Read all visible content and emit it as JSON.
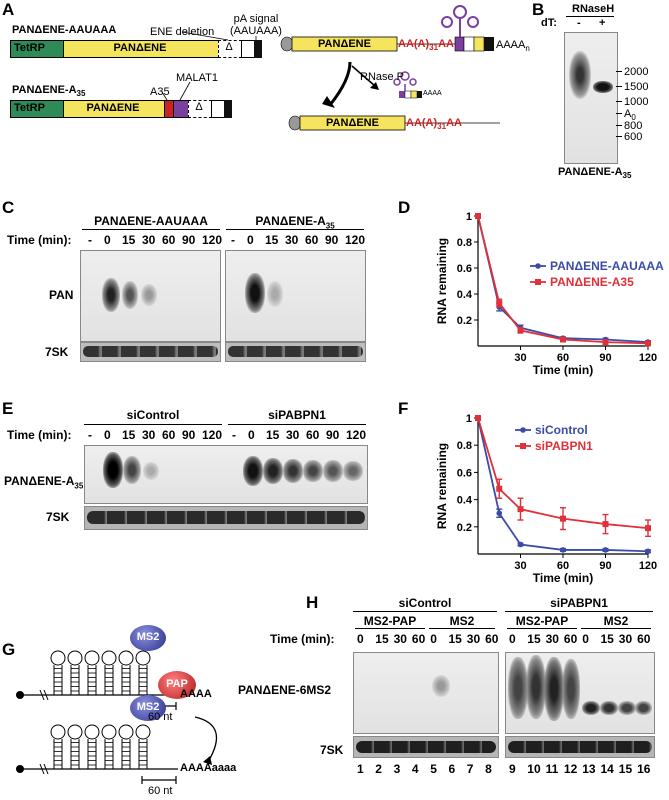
{
  "panel_labels": {
    "A": "A",
    "B": "B",
    "C": "C",
    "D": "D",
    "E": "E",
    "F": "F",
    "G": "G",
    "H": "H"
  },
  "panel_a": {
    "construct1_title": "PANΔENE-AAUAAA",
    "construct2_title": "PANΔENE-A35",
    "tetrp": "TetRP",
    "pan_ene": "PANΔENE",
    "delta": "Δ",
    "ene_deletion": "ENE deletion",
    "pa_signal": "pA signal",
    "pa_signal_seq": "(AAUAAA)",
    "a35": "A35",
    "malat1": "MALAT1",
    "rnase_p": "RNase P",
    "poly_a_label": "AA(A)31AA",
    "aaaan": "AAAAn",
    "aaaa_small": "AAAA",
    "colors": {
      "tetrp": "#2e8b57",
      "pan": "#f5e45e",
      "red": "#cc2222",
      "purple": "#7b3fa0"
    }
  },
  "panel_b": {
    "header": "RNaseH",
    "dt_label": "dT:",
    "lane_minus": "-",
    "lane_plus": "+",
    "markers": [
      "2000",
      "1500",
      "1000",
      "A0",
      "800",
      "600"
    ],
    "caption": "PANΔENE-A35"
  },
  "panel_c": {
    "group1": "PANΔENE-AAUAAA",
    "group2": "PANΔENE-A35",
    "time_label": "Time (min):",
    "times": [
      "-",
      "0",
      "15",
      "30",
      "60",
      "90",
      "120"
    ],
    "row1": "PAN",
    "row2": "7SK"
  },
  "panel_e": {
    "group1": "siControl",
    "group2": "siPABPN1",
    "time_label": "Time (min):",
    "times": [
      "-",
      "0",
      "15",
      "30",
      "60",
      "90",
      "120"
    ],
    "row1": "PANΔENE-A35",
    "row2": "7SK"
  },
  "panel_g": {
    "ms2": "MS2",
    "pap": "PAP",
    "aaaa": "AAAA",
    "aaaaaaaa": "AAAAaaaa",
    "nt60": "60 nt"
  },
  "panel_h": {
    "group1": "siControl",
    "group2": "siPABPN1",
    "sub1": "MS2-PAP",
    "sub2": "MS2",
    "sub3": "MS2-PAP",
    "sub4": "MS2",
    "time_label": "Time (min):",
    "times": [
      "0",
      "15",
      "30",
      "60"
    ],
    "row1": "PANΔENE-6MS2",
    "row2": "7SK",
    "lanes": [
      "1",
      "2",
      "3",
      "4",
      "5",
      "6",
      "7",
      "8",
      "9",
      "10",
      "11",
      "12",
      "13",
      "14",
      "15",
      "16"
    ]
  },
  "chart_data": [
    {
      "panel": "D",
      "type": "line",
      "xlabel": "Time (min)",
      "ylabel": "RNA remaining",
      "xlim": [
        0,
        120
      ],
      "ylim": [
        0,
        1
      ],
      "xticks": [
        "30",
        "60",
        "90",
        "120"
      ],
      "yticks": [
        "0.2",
        "0.4",
        "0.6",
        "0.8",
        "1"
      ],
      "legend_placement": "right",
      "x": [
        0,
        15,
        30,
        60,
        90,
        120
      ],
      "series": [
        {
          "name": "PANΔENE-AAUAAA",
          "color": "#3b4ba8",
          "values": [
            1.0,
            0.3,
            0.14,
            0.06,
            0.05,
            0.03
          ],
          "errors": [
            0,
            0.03,
            0.02,
            0.01,
            0.01,
            0.01
          ]
        },
        {
          "name": "PANΔENE-A35",
          "color": "#e0303a",
          "values": [
            1.0,
            0.33,
            0.12,
            0.05,
            0.03,
            0.02
          ],
          "errors": [
            0,
            0.03,
            0.02,
            0.01,
            0.01,
            0.01
          ]
        }
      ]
    },
    {
      "panel": "F",
      "type": "line",
      "xlabel": "Time (min)",
      "ylabel": "RNA remaining",
      "xlim": [
        0,
        120
      ],
      "ylim": [
        0,
        1
      ],
      "xticks": [
        "30",
        "60",
        "90",
        "120"
      ],
      "yticks": [
        "0.2",
        "0.4",
        "0.6",
        "0.8",
        "1"
      ],
      "legend_placement": "top-right",
      "x": [
        0,
        15,
        30,
        60,
        90,
        120
      ],
      "series": [
        {
          "name": "siControl",
          "color": "#3b4ba8",
          "values": [
            1.0,
            0.3,
            0.07,
            0.03,
            0.03,
            0.02
          ],
          "errors": [
            0,
            0.03,
            0.01,
            0.01,
            0.01,
            0.01
          ]
        },
        {
          "name": "siPABPN1",
          "color": "#e0303a",
          "values": [
            1.0,
            0.48,
            0.33,
            0.26,
            0.22,
            0.19
          ],
          "errors": [
            0,
            0.07,
            0.08,
            0.08,
            0.07,
            0.06
          ]
        }
      ]
    }
  ]
}
